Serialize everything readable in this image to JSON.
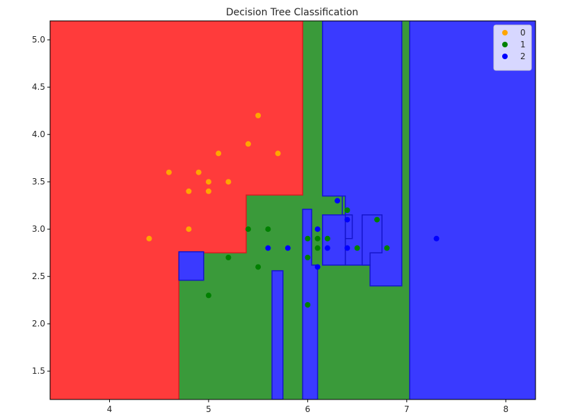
{
  "chart_data": {
    "type": "scatter",
    "title": "Decision Tree Classification",
    "xlabel": "",
    "ylabel": "",
    "xlim": [
      3.4,
      8.3
    ],
    "ylim": [
      1.2,
      5.2
    ],
    "x_ticks": [
      4,
      5,
      6,
      7,
      8
    ],
    "y_ticks": [
      1.5,
      2.0,
      2.5,
      3.0,
      3.5,
      4.0,
      4.5,
      5.0
    ],
    "x_tick_labels": [
      "4",
      "5",
      "6",
      "7",
      "8"
    ],
    "y_tick_labels": [
      "1.5",
      "2.0",
      "2.5",
      "3.0",
      "3.5",
      "4.0",
      "4.5",
      "5.0"
    ],
    "grid": false,
    "legend_position": "top-right",
    "background_class": "1",
    "region_colors": {
      "0": "#ff3b3b",
      "1": "#3a9a3a",
      "2": "#3a3aff"
    },
    "region_edge_colors": {
      "0": "#cc2222",
      "1": "#2a7a2a",
      "2": "#1515cc"
    },
    "regions": [
      {
        "class": "0",
        "points": [
          [
            3.4,
            1.2
          ],
          [
            4.7,
            1.2
          ],
          [
            4.7,
            2.75
          ],
          [
            5.38,
            2.75
          ],
          [
            5.38,
            3.36
          ],
          [
            5.95,
            3.36
          ],
          [
            5.95,
            5.2
          ],
          [
            3.4,
            5.2
          ]
        ]
      },
      {
        "class": "2",
        "points": [
          [
            7.03,
            1.2
          ],
          [
            8.3,
            1.2
          ],
          [
            8.3,
            5.2
          ],
          [
            7.03,
            5.2
          ]
        ]
      },
      {
        "class": "2",
        "points": [
          [
            6.15,
            5.2
          ],
          [
            6.15,
            3.35
          ],
          [
            6.35,
            3.35
          ],
          [
            6.35,
            2.9
          ],
          [
            6.45,
            2.9
          ],
          [
            6.45,
            3.15
          ],
          [
            6.35,
            3.15
          ],
          [
            6.35,
            3.35
          ],
          [
            6.38,
            3.35
          ],
          [
            6.38,
            2.62
          ],
          [
            6.63,
            2.62
          ],
          [
            6.63,
            2.4
          ],
          [
            6.95,
            2.4
          ],
          [
            6.95,
            5.2
          ]
        ]
      },
      {
        "class": "2",
        "points": [
          [
            6.55,
            2.62
          ],
          [
            6.55,
            3.15
          ],
          [
            6.75,
            3.15
          ],
          [
            6.75,
            2.75
          ],
          [
            6.63,
            2.75
          ],
          [
            6.63,
            2.62
          ]
        ]
      },
      {
        "class": "2",
        "points": [
          [
            4.7,
            2.46
          ],
          [
            4.95,
            2.46
          ],
          [
            4.95,
            2.76
          ],
          [
            4.7,
            2.76
          ]
        ]
      },
      {
        "class": "2",
        "points": [
          [
            5.64,
            1.2
          ],
          [
            5.75,
            1.2
          ],
          [
            5.75,
            2.56
          ],
          [
            5.64,
            2.56
          ]
        ]
      },
      {
        "class": "2",
        "points": [
          [
            5.95,
            1.2
          ],
          [
            6.1,
            1.2
          ],
          [
            6.1,
            2.62
          ],
          [
            6.04,
            2.62
          ],
          [
            6.04,
            3.21
          ],
          [
            5.95,
            3.21
          ]
        ]
      },
      {
        "class": "2",
        "points": [
          [
            6.15,
            2.62
          ],
          [
            6.38,
            2.62
          ],
          [
            6.38,
            3.15
          ],
          [
            6.15,
            3.15
          ]
        ]
      }
    ],
    "series": [
      {
        "name": "0",
        "color": "#ffa500",
        "points": [
          [
            4.4,
            2.9
          ],
          [
            4.6,
            3.6
          ],
          [
            4.8,
            3.0
          ],
          [
            4.8,
            3.4
          ],
          [
            4.9,
            3.6
          ],
          [
            5.0,
            3.4
          ],
          [
            5.0,
            3.5
          ],
          [
            5.1,
            3.8
          ],
          [
            5.2,
            3.5
          ],
          [
            5.4,
            3.9
          ],
          [
            5.5,
            4.2
          ],
          [
            5.7,
            3.8
          ]
        ]
      },
      {
        "name": "1",
        "color": "#008000",
        "points": [
          [
            5.0,
            2.3
          ],
          [
            5.2,
            2.7
          ],
          [
            5.4,
            3.0
          ],
          [
            5.5,
            2.6
          ],
          [
            5.6,
            3.0
          ],
          [
            6.0,
            2.2
          ],
          [
            6.0,
            2.7
          ],
          [
            6.0,
            2.9
          ],
          [
            6.1,
            2.8
          ],
          [
            6.1,
            2.9
          ],
          [
            6.2,
            2.9
          ],
          [
            6.4,
            3.2
          ],
          [
            6.5,
            2.8
          ],
          [
            6.7,
            3.1
          ],
          [
            6.8,
            2.8
          ]
        ]
      },
      {
        "name": "2",
        "color": "#0000ff",
        "points": [
          [
            5.6,
            2.8
          ],
          [
            5.8,
            2.8
          ],
          [
            6.1,
            2.6
          ],
          [
            6.1,
            3.0
          ],
          [
            6.2,
            2.8
          ],
          [
            6.3,
            3.3
          ],
          [
            6.4,
            2.8
          ],
          [
            6.4,
            3.1
          ],
          [
            7.3,
            2.9
          ]
        ]
      }
    ]
  }
}
